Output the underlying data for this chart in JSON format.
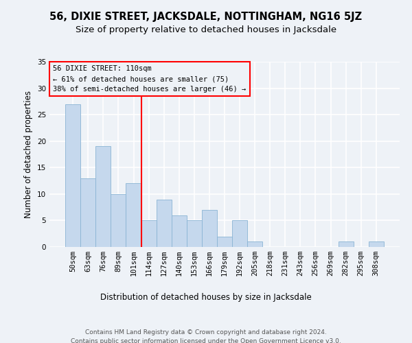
{
  "title": "56, DIXIE STREET, JACKSDALE, NOTTINGHAM, NG16 5JZ",
  "subtitle": "Size of property relative to detached houses in Jacksdale",
  "xlabel": "Distribution of detached houses by size in Jacksdale",
  "ylabel": "Number of detached properties",
  "categories": [
    "50sqm",
    "63sqm",
    "76sqm",
    "89sqm",
    "101sqm",
    "114sqm",
    "127sqm",
    "140sqm",
    "153sqm",
    "166sqm",
    "179sqm",
    "192sqm",
    "205sqm",
    "218sqm",
    "231sqm",
    "243sqm",
    "256sqm",
    "269sqm",
    "282sqm",
    "295sqm",
    "308sqm"
  ],
  "values": [
    27,
    13,
    19,
    10,
    12,
    5,
    9,
    6,
    5,
    7,
    2,
    5,
    1,
    0,
    0,
    0,
    0,
    0,
    1,
    0,
    1
  ],
  "bar_color": "#c5d8ed",
  "bar_edge_color": "#8ab4d4",
  "ylim": [
    0,
    35
  ],
  "yticks": [
    0,
    5,
    10,
    15,
    20,
    25,
    30,
    35
  ],
  "vline_position": 4.5,
  "annotation_text_line1": "56 DIXIE STREET: 110sqm",
  "annotation_text_line2": "← 61% of detached houses are smaller (75)",
  "annotation_text_line3": "38% of semi-detached houses are larger (46) →",
  "footer_line1": "Contains HM Land Registry data © Crown copyright and database right 2024.",
  "footer_line2": "Contains public sector information licensed under the Open Government Licence v3.0.",
  "background_color": "#eef2f7",
  "grid_color": "#ffffff",
  "title_fontsize": 10.5,
  "subtitle_fontsize": 9.5,
  "axis_label_fontsize": 8.5,
  "tick_fontsize": 7.5,
  "footer_fontsize": 6.5,
  "ann_fontsize": 7.5
}
